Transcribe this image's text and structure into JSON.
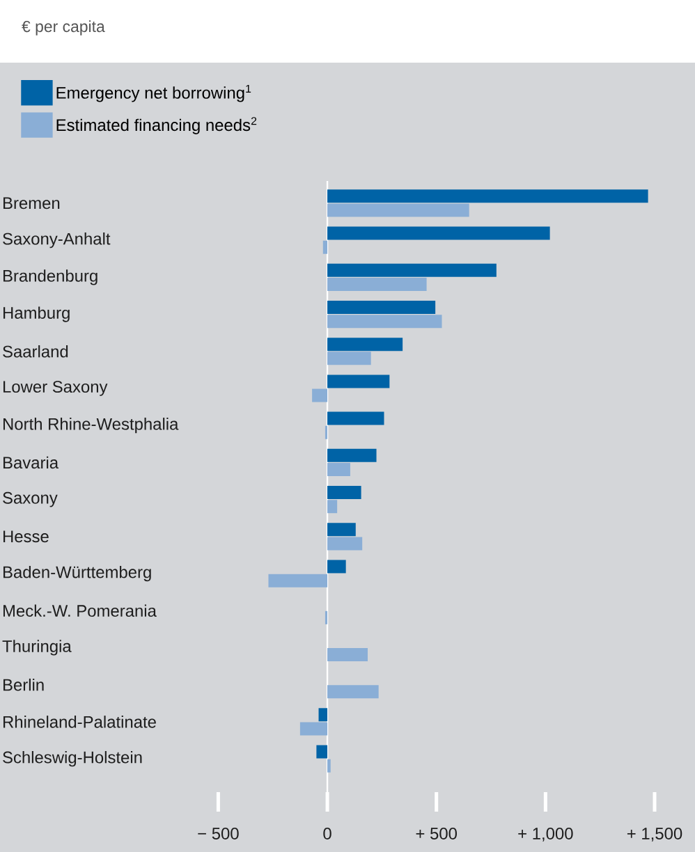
{
  "chart_data": {
    "type": "bar",
    "orientation": "horizontal",
    "title": "€ per capita",
    "categories": [
      "Bremen",
      "Saxony-Anhalt",
      "Brandenburg",
      "Hamburg",
      "Saarland",
      "Lower Saxony",
      "North Rhine-Westphalia",
      "Bavaria",
      "Saxony",
      "Hesse",
      "Baden-Württemberg",
      "Meck.-W. Pomerania",
      "Thuringia",
      "Berlin",
      "Rhineland-Palatinate",
      "Schleswig-Holstein"
    ],
    "series": [
      {
        "name": "Emergency net borrowing$^{1}$",
        "color": "#0063a6",
        "values": [
          1470,
          1020,
          775,
          495,
          345,
          285,
          260,
          225,
          155,
          130,
          85,
          null,
          null,
          null,
          -40,
          -50
        ]
      },
      {
        "name": "Estimated financing needs$^{2}$",
        "color": "#8aaed6",
        "values": [
          650,
          -20,
          455,
          525,
          200,
          -70,
          -10,
          105,
          45,
          160,
          -270,
          -10,
          185,
          235,
          -125,
          15
        ]
      }
    ],
    "xlim": [
      -500,
      1500
    ],
    "xticks": [
      {
        "value": -500,
        "label": "− 500"
      },
      0,
      {
        "value": 500,
        "label": "+ 500"
      },
      {
        "value": 1000,
        "label": "+ 1,000"
      },
      {
        "value": 1500,
        "label": "+ 1,500"
      }
    ],
    "legend": "top left"
  }
}
